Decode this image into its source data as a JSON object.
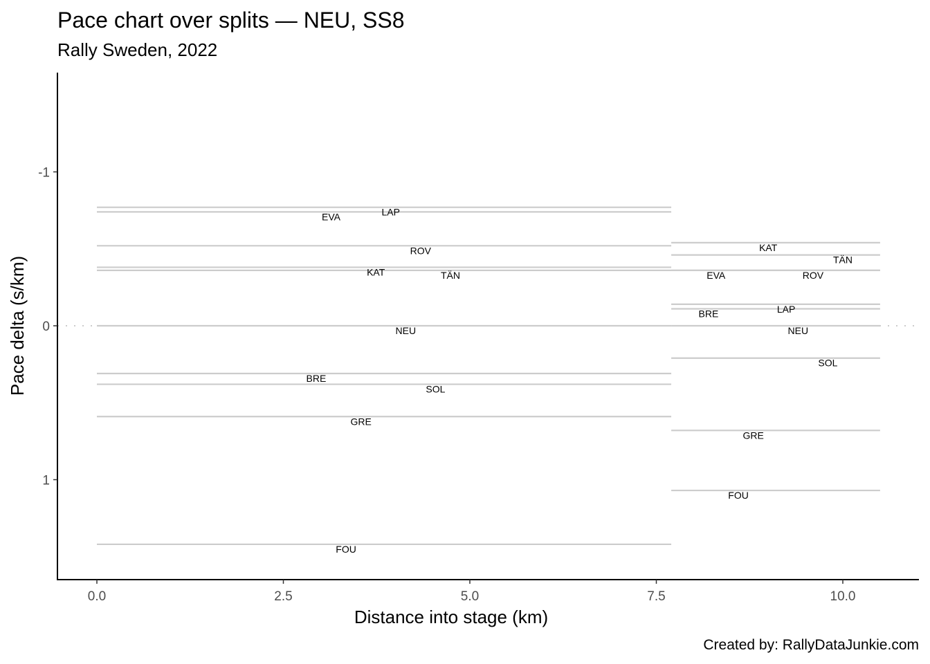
{
  "title": "Pace chart over splits — NEU, SS8",
  "subtitle": "Rally Sweden, 2022",
  "caption": "Created by: RallyDataJunkie.com",
  "xlabel": "Distance into stage (km)",
  "ylabel": "Pace delta (s/km)",
  "colors": {
    "segment": "#cccccc",
    "axis": "#000000",
    "zero_line": "#cccccc",
    "tick_text": "#4d4d4d"
  },
  "chart_data": {
    "type": "line",
    "title": "Pace chart over splits — NEU, SS8",
    "subtitle": "Rally Sweden, 2022",
    "xlabel": "Distance into stage (km)",
    "ylabel": "Pace delta (s/km)",
    "xlim": [
      -0.26,
      11.01
    ],
    "ylim": [
      1.65,
      -1.65
    ],
    "y_reversed": true,
    "x_ticks": [
      0.0,
      2.5,
      5.0,
      7.5,
      10.0
    ],
    "x_tick_labels": [
      "0.0",
      "2.5",
      "5.0",
      "7.5",
      "10.0"
    ],
    "y_ticks": [
      -1,
      0,
      1
    ],
    "y_tick_labels": [
      "-1",
      "0",
      "1"
    ],
    "grid": false,
    "legend": "none",
    "reference_line": {
      "y": 0,
      "style": "dotted"
    },
    "splits": [
      {
        "start": 0.0,
        "end": 7.7
      },
      {
        "start": 7.7,
        "end": 10.5
      }
    ],
    "series": [
      {
        "name": "LAP",
        "values": [
          -0.77,
          -0.14
        ],
        "label_x": [
          3.94,
          9.24
        ]
      },
      {
        "name": "EVA",
        "values": [
          -0.74,
          -0.36
        ],
        "label_x": [
          3.14,
          8.3
        ]
      },
      {
        "name": "ROV",
        "values": [
          -0.52,
          -0.36
        ],
        "label_x": [
          4.34,
          9.6
        ]
      },
      {
        "name": "KAT",
        "values": [
          -0.38,
          -0.54
        ],
        "label_x": [
          3.74,
          9.0
        ]
      },
      {
        "name": "TÄN",
        "values": [
          -0.36,
          -0.46
        ],
        "label_x": [
          4.74,
          10.0
        ]
      },
      {
        "name": "NEU",
        "values": [
          0.0,
          0.0
        ],
        "label_x": [
          4.14,
          9.4
        ]
      },
      {
        "name": "BRE",
        "values": [
          0.31,
          -0.11
        ],
        "label_x": [
          2.94,
          8.2
        ]
      },
      {
        "name": "SOL",
        "values": [
          0.38,
          0.21
        ],
        "label_x": [
          4.54,
          9.8
        ]
      },
      {
        "name": "GRE",
        "values": [
          0.59,
          0.68
        ],
        "label_x": [
          3.54,
          8.8
        ]
      },
      {
        "name": "FOU",
        "values": [
          1.42,
          1.07
        ],
        "label_x": [
          3.34,
          8.6
        ]
      }
    ]
  }
}
